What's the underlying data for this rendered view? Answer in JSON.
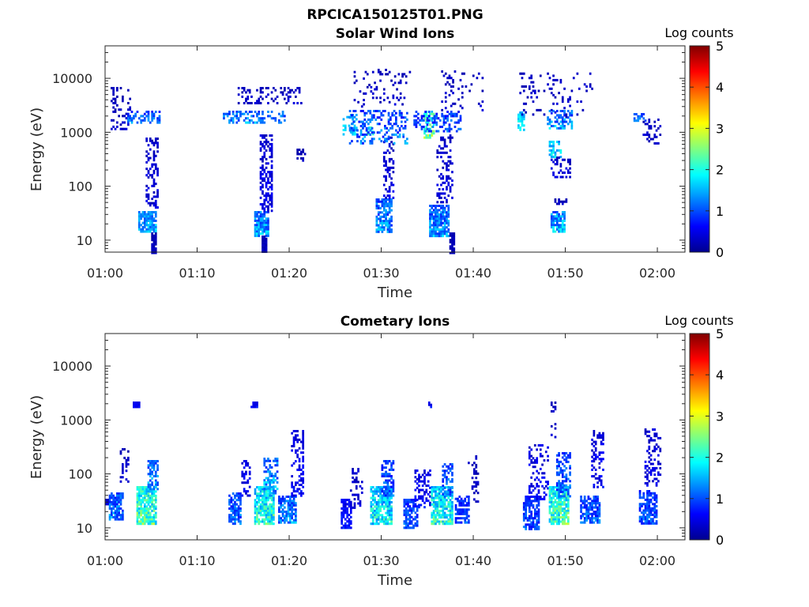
{
  "figure_title": "RPCICA150125T01.PNG",
  "colorbar": {
    "label": "Log counts",
    "ticks": [
      "0",
      "1",
      "2",
      "3",
      "4",
      "5"
    ],
    "range": [
      0,
      5
    ],
    "colormap": "jet"
  },
  "chart_data": [
    {
      "type": "heatmap",
      "title": "Solar Wind Ions",
      "xlabel": "Time",
      "ylabel": "Energy (eV)",
      "x_ticks": [
        "01:00",
        "01:10",
        "01:20",
        "01:30",
        "01:40",
        "01:50",
        "02:00"
      ],
      "y_ticks": [
        "10",
        "100",
        "1000",
        "10000"
      ],
      "xlim_minutes": [
        0,
        63
      ],
      "ylim_eV": [
        6,
        40000
      ],
      "yscale": "log",
      "grid": false,
      "clusters": [
        {
          "t": [
            3.6,
            5.5
          ],
          "e": [
            15,
            35
          ],
          "v": [
            0.6,
            1.9
          ],
          "fill": 0.8
        },
        {
          "t": [
            4.4,
            5.6
          ],
          "e": [
            40,
            800
          ],
          "v": [
            0.1,
            0.6
          ],
          "fill": 0.4
        },
        {
          "t": [
            5.0,
            5.5
          ],
          "e": [
            6,
            14
          ],
          "v": [
            0.1,
            0.4
          ],
          "fill": 0.9
        },
        {
          "t": [
            2.4,
            5.8
          ],
          "e": [
            1500,
            2500
          ],
          "v": [
            0.3,
            1.6
          ],
          "fill": 0.5
        },
        {
          "t": [
            0.6,
            2.6
          ],
          "e": [
            1200,
            7000
          ],
          "v": [
            0.1,
            0.5
          ],
          "fill": 0.2
        },
        {
          "t": [
            16.2,
            17.6
          ],
          "e": [
            12,
            35
          ],
          "v": [
            0.3,
            2.0
          ],
          "fill": 0.85
        },
        {
          "t": [
            16.8,
            18.0
          ],
          "e": [
            35,
            900
          ],
          "v": [
            0.1,
            0.7
          ],
          "fill": 0.45
        },
        {
          "t": [
            17.0,
            17.4
          ],
          "e": [
            6,
            12
          ],
          "v": [
            0.1,
            0.4
          ],
          "fill": 0.9
        },
        {
          "t": [
            12.8,
            19.4
          ],
          "e": [
            1500,
            2500
          ],
          "v": [
            0.4,
            1.8
          ],
          "fill": 0.45
        },
        {
          "t": [
            14.4,
            21.2
          ],
          "e": [
            3500,
            7000
          ],
          "v": [
            0.1,
            0.5
          ],
          "fill": 0.25
        },
        {
          "t": [
            20.8,
            21.6
          ],
          "e": [
            300,
            500
          ],
          "v": [
            0.1,
            0.4
          ],
          "fill": 0.4
        },
        {
          "t": [
            29.4,
            31.0
          ],
          "e": [
            15,
            60
          ],
          "v": [
            0.3,
            1.8
          ],
          "fill": 0.75
        },
        {
          "t": [
            30.2,
            31.2
          ],
          "e": [
            60,
            900
          ],
          "v": [
            0.1,
            0.6
          ],
          "fill": 0.35
        },
        {
          "t": [
            25.8,
            27.2
          ],
          "e": [
            900,
            2200
          ],
          "v": [
            1.0,
            2.0
          ],
          "fill": 0.4
        },
        {
          "t": [
            28.4,
            29.0
          ],
          "e": [
            900,
            1300
          ],
          "v": [
            1.0,
            2.8
          ],
          "fill": 0.7
        },
        {
          "t": [
            26.5,
            32.8
          ],
          "e": [
            600,
            2600
          ],
          "v": [
            0.2,
            1.7
          ],
          "fill": 0.3
        },
        {
          "t": [
            27.0,
            33.0
          ],
          "e": [
            3000,
            15000
          ],
          "v": [
            0.1,
            0.5
          ],
          "fill": 0.12
        },
        {
          "t": [
            35.2,
            37.3
          ],
          "e": [
            12,
            45
          ],
          "v": [
            0.3,
            1.9
          ],
          "fill": 0.8
        },
        {
          "t": [
            36.0,
            37.6
          ],
          "e": [
            50,
            900
          ],
          "v": [
            0.1,
            0.6
          ],
          "fill": 0.35
        },
        {
          "t": [
            37.4,
            37.8
          ],
          "e": [
            6,
            14
          ],
          "v": [
            0.1,
            0.4
          ],
          "fill": 0.9
        },
        {
          "t": [
            34.6,
            35.6
          ],
          "e": [
            800,
            2500
          ],
          "v": [
            1.0,
            3.0
          ],
          "fill": 0.6
        },
        {
          "t": [
            33.5,
            38.5
          ],
          "e": [
            1000,
            2500
          ],
          "v": [
            0.2,
            1.5
          ],
          "fill": 0.35
        },
        {
          "t": [
            36.5,
            41.0
          ],
          "e": [
            2500,
            14000
          ],
          "v": [
            0.1,
            0.5
          ],
          "fill": 0.1
        },
        {
          "t": [
            48.4,
            49.8
          ],
          "e": [
            15,
            35
          ],
          "v": [
            0.4,
            2.1
          ],
          "fill": 0.8
        },
        {
          "t": [
            48.8,
            50.0
          ],
          "e": [
            45,
            60
          ],
          "v": [
            0.1,
            0.5
          ],
          "fill": 0.6
        },
        {
          "t": [
            48.2,
            49.4
          ],
          "e": [
            350,
            700
          ],
          "v": [
            0.8,
            2.2
          ],
          "fill": 0.55
        },
        {
          "t": [
            48.0,
            50.6
          ],
          "e": [
            1200,
            2600
          ],
          "v": [
            0.3,
            1.9
          ],
          "fill": 0.45
        },
        {
          "t": [
            44.8,
            45.4
          ],
          "e": [
            1100,
            2400
          ],
          "v": [
            1.0,
            2.2
          ],
          "fill": 0.7
        },
        {
          "t": [
            48.4,
            50.4
          ],
          "e": [
            150,
            350
          ],
          "v": [
            0.1,
            0.6
          ],
          "fill": 0.3
        },
        {
          "t": [
            45.0,
            52.8
          ],
          "e": [
            2000,
            14000
          ],
          "v": [
            0.1,
            0.5
          ],
          "fill": 0.1
        },
        {
          "t": [
            57.4,
            58.6
          ],
          "e": [
            1700,
            2300
          ],
          "v": [
            0.6,
            1.5
          ],
          "fill": 0.6
        },
        {
          "t": [
            58.4,
            60.2
          ],
          "e": [
            600,
            1800
          ],
          "v": [
            0.1,
            0.5
          ],
          "fill": 0.3
        }
      ]
    },
    {
      "type": "heatmap",
      "title": "Cometary Ions",
      "xlabel": "Time",
      "ylabel": "Energy (eV)",
      "x_ticks": [
        "01:00",
        "01:10",
        "01:20",
        "01:30",
        "01:40",
        "01:50",
        "02:00"
      ],
      "y_ticks": [
        "10",
        "100",
        "1000",
        "10000"
      ],
      "xlim_minutes": [
        0,
        63
      ],
      "ylim_eV": [
        6,
        40000
      ],
      "yscale": "log",
      "grid": false,
      "clusters": [
        {
          "t": [
            0.4,
            1.8
          ],
          "e": [
            15,
            45
          ],
          "v": [
            0.3,
            1.7
          ],
          "fill": 0.8
        },
        {
          "t": [
            0.0,
            0.2
          ],
          "e": [
            28,
            35
          ],
          "v": [
            0.2,
            0.6
          ],
          "fill": 1.0
        },
        {
          "t": [
            3.4,
            5.4
          ],
          "e": [
            12,
            60
          ],
          "v": [
            0.8,
            2.9
          ],
          "fill": 0.85
        },
        {
          "t": [
            4.6,
            5.6
          ],
          "e": [
            50,
            180
          ],
          "v": [
            0.4,
            1.8
          ],
          "fill": 0.6
        },
        {
          "t": [
            1.6,
            2.4
          ],
          "e": [
            70,
            300
          ],
          "v": [
            0.1,
            0.5
          ],
          "fill": 0.2
        },
        {
          "t": [
            3.0,
            3.6
          ],
          "e": [
            1800,
            2200
          ],
          "v": [
            0.3,
            0.8
          ],
          "fill": 0.8
        },
        {
          "t": [
            13.4,
            14.6
          ],
          "e": [
            12,
            45
          ],
          "v": [
            0.3,
            1.6
          ],
          "fill": 0.75
        },
        {
          "t": [
            14.8,
            15.6
          ],
          "e": [
            40,
            180
          ],
          "v": [
            0.1,
            0.8
          ],
          "fill": 0.4
        },
        {
          "t": [
            16.2,
            18.2
          ],
          "e": [
            12,
            60
          ],
          "v": [
            0.7,
            2.7
          ],
          "fill": 0.8
        },
        {
          "t": [
            17.2,
            18.6
          ],
          "e": [
            45,
            200
          ],
          "v": [
            0.3,
            2.0
          ],
          "fill": 0.6
        },
        {
          "t": [
            18.8,
            20.6
          ],
          "e": [
            12,
            40
          ],
          "v": [
            0.3,
            1.8
          ],
          "fill": 0.7
        },
        {
          "t": [
            20.2,
            21.4
          ],
          "e": [
            40,
            650
          ],
          "v": [
            0.1,
            0.8
          ],
          "fill": 0.4
        },
        {
          "t": [
            15.8,
            16.4
          ],
          "e": [
            1800,
            2200
          ],
          "v": [
            0.3,
            0.8
          ],
          "fill": 0.8
        },
        {
          "t": [
            25.6,
            26.6
          ],
          "e": [
            10,
            35
          ],
          "v": [
            0.2,
            1.0
          ],
          "fill": 0.7
        },
        {
          "t": [
            26.6,
            27.8
          ],
          "e": [
            25,
            130
          ],
          "v": [
            0.1,
            0.6
          ],
          "fill": 0.3
        },
        {
          "t": [
            28.8,
            31.0
          ],
          "e": [
            12,
            60
          ],
          "v": [
            0.6,
            2.5
          ],
          "fill": 0.8
        },
        {
          "t": [
            30.0,
            31.2
          ],
          "e": [
            40,
            180
          ],
          "v": [
            0.2,
            1.5
          ],
          "fill": 0.55
        },
        {
          "t": [
            32.4,
            33.8
          ],
          "e": [
            10,
            35
          ],
          "v": [
            0.3,
            1.4
          ],
          "fill": 0.75
        },
        {
          "t": [
            33.6,
            35.2
          ],
          "e": [
            25,
            120
          ],
          "v": [
            0.1,
            0.9
          ],
          "fill": 0.4
        },
        {
          "t": [
            35.4,
            37.6
          ],
          "e": [
            12,
            60
          ],
          "v": [
            0.7,
            2.7
          ],
          "fill": 0.8
        },
        {
          "t": [
            36.6,
            37.6
          ],
          "e": [
            40,
            160
          ],
          "v": [
            0.3,
            1.6
          ],
          "fill": 0.5
        },
        {
          "t": [
            38.0,
            39.4
          ],
          "e": [
            12,
            40
          ],
          "v": [
            0.3,
            1.3
          ],
          "fill": 0.65
        },
        {
          "t": [
            39.4,
            40.4
          ],
          "e": [
            30,
            220
          ],
          "v": [
            0.1,
            0.5
          ],
          "fill": 0.25
        },
        {
          "t": [
            35.1,
            35.4
          ],
          "e": [
            1800,
            2200
          ],
          "v": [
            0.3,
            0.8
          ],
          "fill": 0.8
        },
        {
          "t": [
            45.4,
            47.0
          ],
          "e": [
            10,
            40
          ],
          "v": [
            0.3,
            1.3
          ],
          "fill": 0.7
        },
        {
          "t": [
            46.0,
            48.0
          ],
          "e": [
            35,
            350
          ],
          "v": [
            0.1,
            0.8
          ],
          "fill": 0.3
        },
        {
          "t": [
            48.2,
            50.2
          ],
          "e": [
            12,
            60
          ],
          "v": [
            0.8,
            2.9
          ],
          "fill": 0.85
        },
        {
          "t": [
            49.0,
            50.4
          ],
          "e": [
            40,
            250
          ],
          "v": [
            0.3,
            1.5
          ],
          "fill": 0.5
        },
        {
          "t": [
            48.4,
            48.9
          ],
          "e": [
            500,
            2200
          ],
          "v": [
            0.1,
            0.6
          ],
          "fill": 0.3
        },
        {
          "t": [
            51.6,
            53.6
          ],
          "e": [
            12,
            40
          ],
          "v": [
            0.3,
            1.5
          ],
          "fill": 0.7
        },
        {
          "t": [
            52.8,
            54.0
          ],
          "e": [
            60,
            650
          ],
          "v": [
            0.1,
            0.8
          ],
          "fill": 0.35
        },
        {
          "t": [
            58.0,
            59.8
          ],
          "e": [
            12,
            50
          ],
          "v": [
            0.3,
            1.4
          ],
          "fill": 0.7
        },
        {
          "t": [
            58.6,
            60.2
          ],
          "e": [
            60,
            700
          ],
          "v": [
            0.1,
            0.7
          ],
          "fill": 0.3
        }
      ]
    }
  ]
}
